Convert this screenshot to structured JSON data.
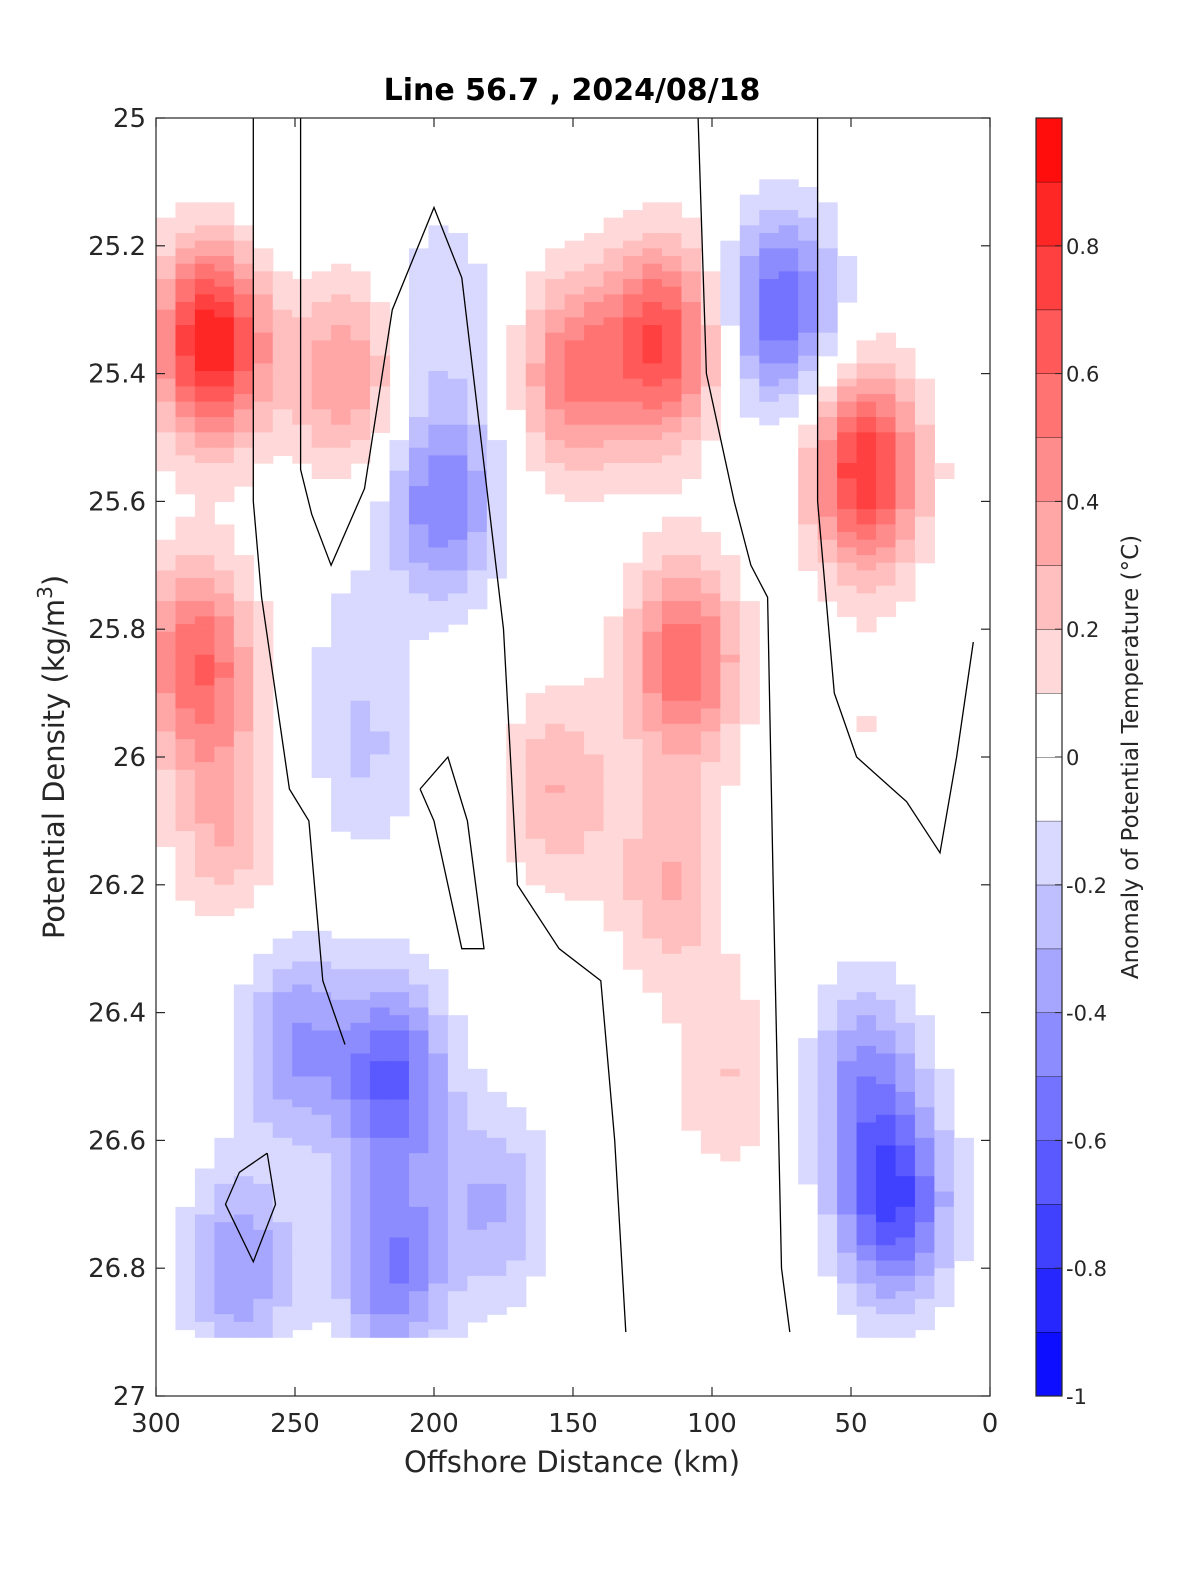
{
  "chart_data": {
    "type": "heatmap",
    "subtype": "filled-contour",
    "title": "Line 56.7 , 2024/08/18",
    "xlabel": "Offshore Distance (km)",
    "ylabel_main": "Potential Density (kg/m",
    "ylabel_sup": "3",
    "ylabel_close": ")",
    "xlim": [
      300,
      0
    ],
    "x_reversed": true,
    "ylim": [
      25,
      27
    ],
    "y_reversed": true,
    "xticks": [
      300,
      250,
      200,
      150,
      100,
      50,
      0
    ],
    "xtick_labels": [
      "300",
      "250",
      "200",
      "150",
      "100",
      "50",
      "0"
    ],
    "yticks": [
      25,
      25.2,
      25.4,
      25.6,
      25.8,
      26,
      26.2,
      26.4,
      26.6,
      26.8,
      27
    ],
    "ytick_labels": [
      "25",
      "25.2",
      "25.4",
      "25.6",
      "25.8",
      "26",
      "26.2",
      "26.4",
      "26.6",
      "26.8",
      "27"
    ],
    "colorbar": {
      "label": "Anomaly of Potential Temperature (°C)",
      "range": [
        -1,
        1
      ],
      "levels": [
        -1,
        -0.9,
        -0.8,
        -0.7,
        -0.6,
        -0.5,
        -0.4,
        -0.3,
        -0.2,
        -0.1,
        0,
        0.1,
        0.2,
        0.3,
        0.4,
        0.5,
        0.6,
        0.7,
        0.8,
        0.9,
        1
      ],
      "ticks": [
        -1,
        -0.8,
        -0.6,
        -0.4,
        -0.2,
        0,
        0.2,
        0.4,
        0.6,
        0.8
      ],
      "tick_labels": [
        "-1",
        "-0.8",
        "-0.6",
        "-0.4",
        "-0.2",
        "0",
        "0.2",
        "0.4",
        "0.6",
        "0.8"
      ],
      "colormap": "blue-white-red"
    },
    "grid": false,
    "data_extent": {
      "y_max": 26.9
    },
    "zero_contour": "black line",
    "features": [
      {
        "x": 280,
        "y": 25.35,
        "anomaly": 0.9
      },
      {
        "x": 285,
        "y": 25.85,
        "anomaly": 0.6
      },
      {
        "x": 275,
        "y": 26.1,
        "anomaly": 0.3
      },
      {
        "x": 255,
        "y": 25.1,
        "anomaly": -0.1
      },
      {
        "x": 232,
        "y": 25.4,
        "anomaly": 0.4
      },
      {
        "x": 230,
        "y": 25.8,
        "anomaly": -0.1
      },
      {
        "x": 197,
        "y": 25.6,
        "anomaly": -0.5
      },
      {
        "x": 197,
        "y": 25.3,
        "anomaly": -0.2
      },
      {
        "x": 225,
        "y": 26.0,
        "anomaly": -0.2
      },
      {
        "x": 150,
        "y": 25.4,
        "anomaly": 0.5
      },
      {
        "x": 118,
        "y": 25.35,
        "anomaly": 0.7
      },
      {
        "x": 110,
        "y": 25.85,
        "anomaly": 0.6
      },
      {
        "x": 115,
        "y": 26.2,
        "anomaly": 0.3
      },
      {
        "x": 155,
        "y": 26.05,
        "anomaly": 0.3
      },
      {
        "x": 95,
        "y": 26.5,
        "anomaly": 0.2
      },
      {
        "x": 75,
        "y": 25.3,
        "anomaly": -0.6
      },
      {
        "x": 45,
        "y": 25.55,
        "anomaly": 0.8
      },
      {
        "x": 43,
        "y": 25.95,
        "anomaly": 0.1
      },
      {
        "x": 250,
        "y": 26.45,
        "anomaly": -0.4
      },
      {
        "x": 215,
        "y": 26.5,
        "anomaly": -0.6
      },
      {
        "x": 215,
        "y": 26.8,
        "anomaly": -0.5
      },
      {
        "x": 270,
        "y": 26.8,
        "anomaly": -0.4
      },
      {
        "x": 178,
        "y": 26.7,
        "anomaly": -0.3
      },
      {
        "x": 45,
        "y": 26.5,
        "anomaly": -0.4
      },
      {
        "x": 35,
        "y": 26.7,
        "anomaly": -0.7
      }
    ]
  }
}
